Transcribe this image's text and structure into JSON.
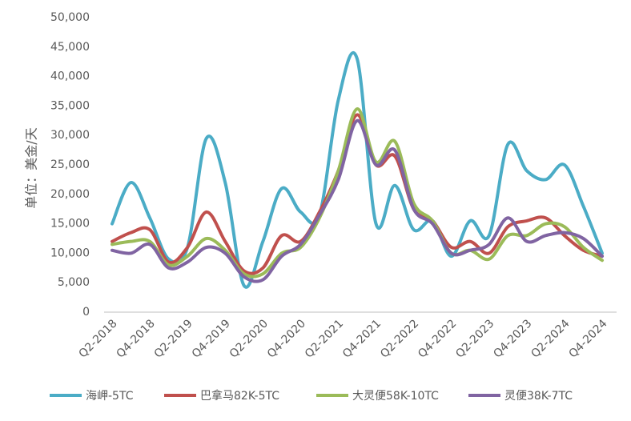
{
  "chart_data": {
    "type": "line",
    "y_label": "单位：美金/天",
    "categories": [
      "Q2-2018",
      null,
      "Q4-2018",
      null,
      "Q2-2019",
      null,
      "Q4-2019",
      null,
      "Q2-2020",
      null,
      "Q4-2020",
      null,
      "Q2-2021",
      null,
      "Q4-2021",
      null,
      "Q2-2022",
      null,
      "Q4-2022",
      null,
      "Q2-2023",
      null,
      "Q4-2023",
      null,
      "Q2-2024",
      null,
      "Q4-2024"
    ],
    "series": [
      {
        "name": "海岬-5TC",
        "color": "#4bacc6",
        "values": [
          15000,
          22000,
          16000,
          9000,
          11000,
          29500,
          22000,
          4500,
          12000,
          21000,
          17000,
          16500,
          36000,
          43000,
          15000,
          21500,
          14000,
          15500,
          9500,
          15500,
          13000,
          28500,
          24000,
          22500,
          25000,
          18000,
          10000
        ]
      },
      {
        "name": "巴拿马82K-5TC",
        "color": "#c0504d",
        "values": [
          12000,
          13500,
          14000,
          8500,
          11000,
          17000,
          12000,
          7000,
          7500,
          13000,
          12000,
          17000,
          24000,
          33500,
          25000,
          26500,
          17500,
          15500,
          11000,
          12000,
          10000,
          14500,
          15500,
          16000,
          13000,
          10500,
          9500
        ]
      },
      {
        "name": "大灵便58K-10TC",
        "color": "#9bbb59",
        "values": [
          11500,
          12000,
          12000,
          8000,
          9500,
          12500,
          10500,
          6500,
          6500,
          10000,
          11000,
          16000,
          24000,
          34500,
          25500,
          29000,
          18500,
          15500,
          10000,
          10500,
          9000,
          13000,
          13000,
          15000,
          14500,
          11000,
          8800
        ]
      },
      {
        "name": "灵便38K-7TC",
        "color": "#8064a2",
        "values": [
          10500,
          10000,
          11500,
          7500,
          8500,
          11000,
          10000,
          6000,
          5500,
          9500,
          11500,
          16500,
          22500,
          32500,
          25000,
          27500,
          17500,
          15000,
          10000,
          10500,
          11500,
          16000,
          12000,
          13000,
          13500,
          12500,
          9500
        ]
      }
    ],
    "ylim": [
      0,
      50000
    ],
    "yticks": [
      0,
      {
        "value": 5000,
        "label": "5,000"
      },
      {
        "value": 10000,
        "label": "10,000"
      },
      {
        "value": 15000,
        "label": "15,000"
      },
      {
        "value": 20000,
        "label": "20,000"
      },
      {
        "value": 25000,
        "label": "25,000"
      },
      {
        "value": 30000,
        "label": "30,000"
      },
      {
        "value": 35000,
        "label": "35,000"
      },
      {
        "value": 40000,
        "label": "40,000"
      },
      {
        "value": 45000,
        "label": "45,000"
      },
      {
        "value": 50000,
        "label": "50,000"
      }
    ],
    "grid": false
  }
}
